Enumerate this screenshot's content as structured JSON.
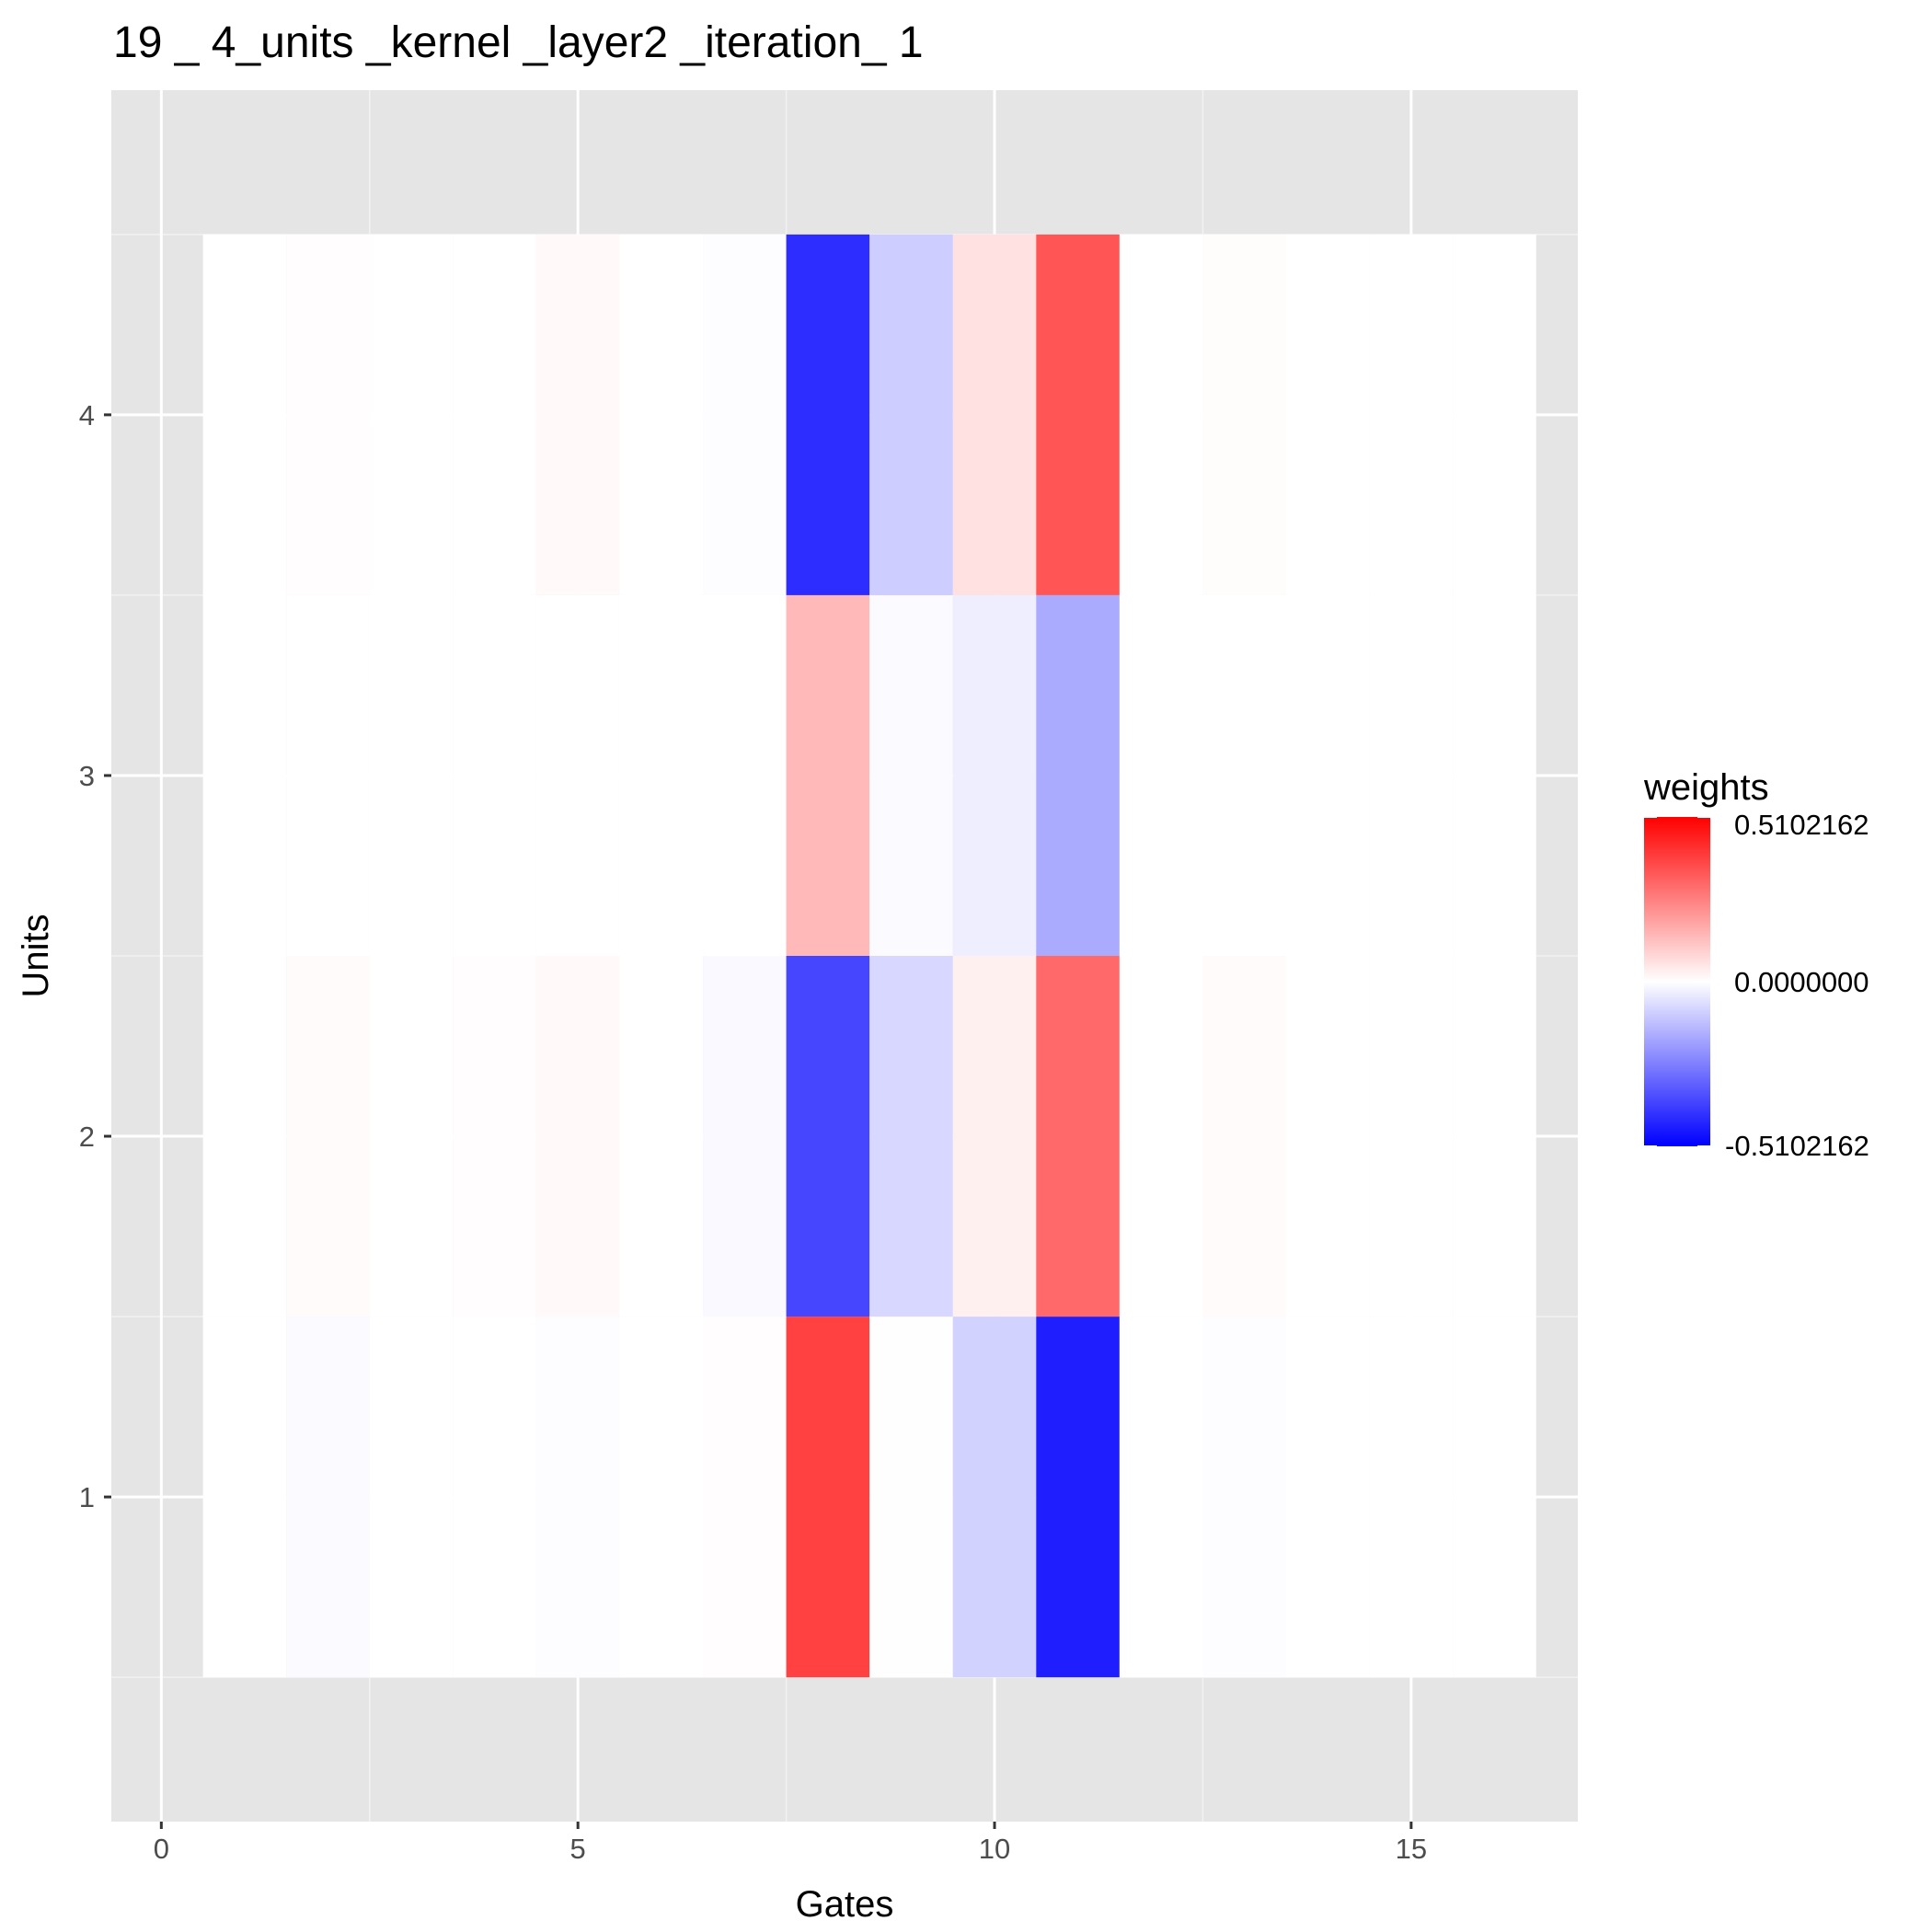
{
  "chart_data": {
    "type": "heatmap",
    "title": "19 _ 4_units _kernel _layer2 _iteration_ 1",
    "xlabel": "Gates",
    "ylabel": "Units",
    "xlim": [
      -0.6,
      17.0
    ],
    "ylim": [
      0.1,
      4.9
    ],
    "x_ticks": [
      0,
      5,
      10,
      15
    ],
    "y_ticks": [
      1,
      2,
      3,
      4
    ],
    "x": [
      1,
      2,
      3,
      4,
      5,
      6,
      7,
      8,
      9,
      10,
      11,
      12,
      13,
      14,
      15,
      16
    ],
    "y": [
      1,
      2,
      3,
      4
    ],
    "values": [
      [
        0.0,
        -0.01,
        0.0,
        0.0,
        -0.005,
        0.0,
        0.005,
        0.38,
        0.002,
        -0.09,
        -0.45,
        0.0,
        -0.004,
        0.0,
        0.0,
        0.0
      ],
      [
        0.0,
        0.008,
        0.0,
        0.004,
        0.012,
        0.0,
        -0.012,
        -0.37,
        -0.08,
        0.03,
        0.3,
        0.0,
        0.008,
        0.0,
        0.0,
        0.0
      ],
      [
        0.0,
        0.0,
        0.0,
        0.0,
        0.0,
        0.0,
        0.0,
        0.14,
        -0.01,
        -0.035,
        -0.17,
        0.0,
        0.0,
        0.0,
        0.0,
        0.0
      ],
      [
        0.0,
        0.004,
        0.0,
        0.0,
        0.012,
        0.0,
        -0.005,
        -0.42,
        -0.1,
        0.06,
        0.34,
        0.0,
        0.006,
        0.0,
        0.0,
        0.0
      ]
    ],
    "legend": {
      "title": "weights",
      "max_label": "0.5102162",
      "mid_label": "0.0000000",
      "min_label": "-0.5102162",
      "max": 0.5102162,
      "min": -0.5102162,
      "high_color": "#ff0000",
      "mid_color": "#ffffff",
      "low_color": "#0000ff",
      "placement": "right"
    },
    "grid": true,
    "panel_background": "#e5e5e5"
  }
}
